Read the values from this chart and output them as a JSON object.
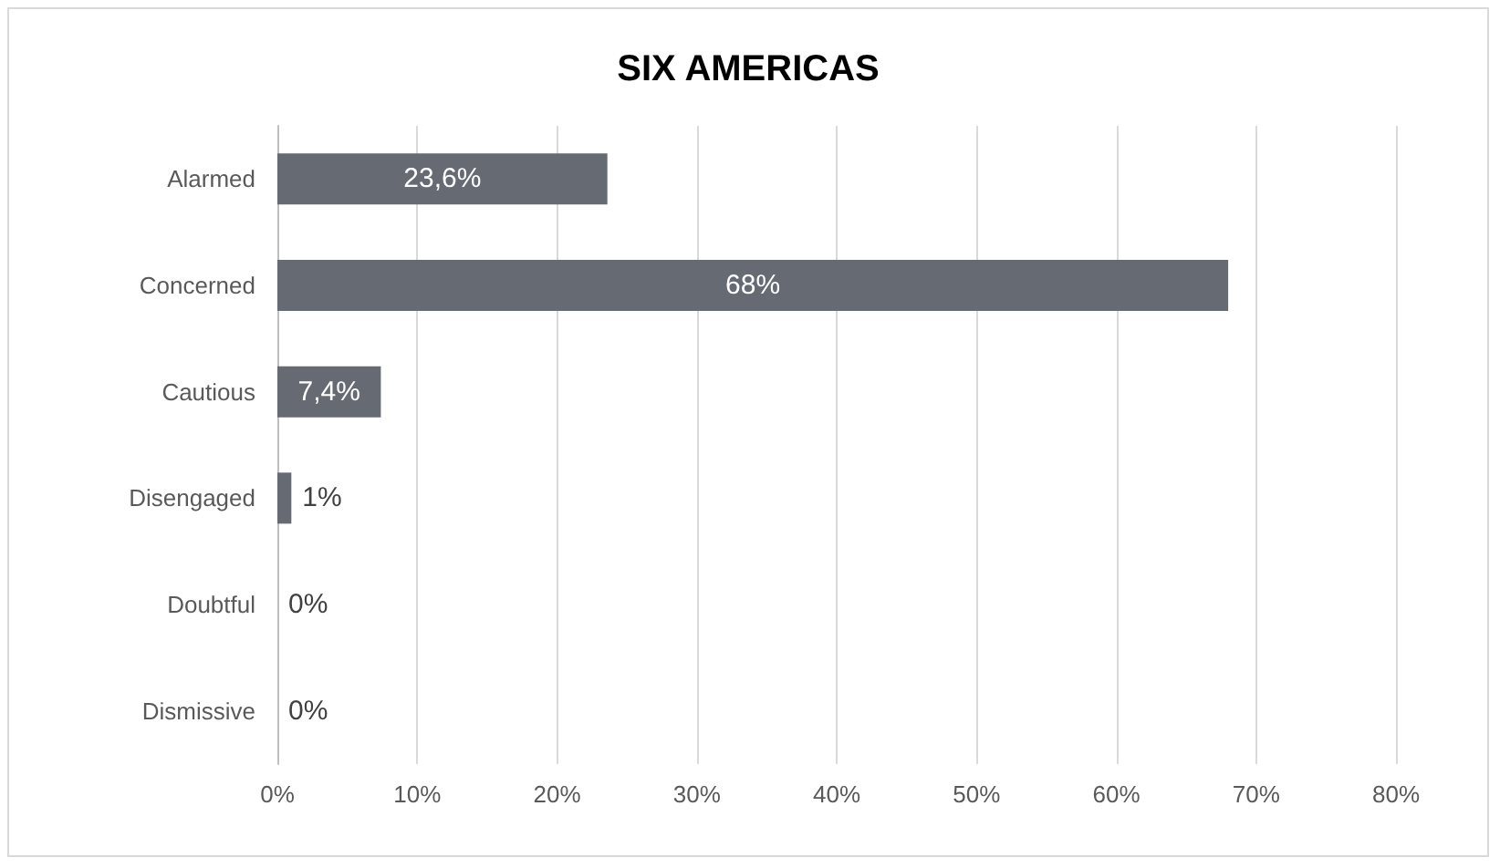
{
  "chart_data": {
    "type": "bar",
    "title": "SIX AMERICAS",
    "orientation": "horizontal",
    "categories": [
      "Alarmed",
      "Concerned",
      "Cautious",
      "Disengaged",
      "Doubtful",
      "Dismissive"
    ],
    "values": [
      23.6,
      68,
      7.4,
      1,
      0,
      0
    ],
    "value_labels": [
      "23,6%",
      "68%",
      "7,4%",
      "1%",
      "0%",
      "0%"
    ],
    "color": "#666a73",
    "xlim": [
      0,
      80
    ],
    "xticks": [
      {
        "value": 0,
        "label": "0%"
      },
      {
        "value": 10,
        "label": "10%"
      },
      {
        "value": 20,
        "label": "20%"
      },
      {
        "value": 30,
        "label": "30%"
      },
      {
        "value": 40,
        "label": "40%"
      },
      {
        "value": 50,
        "label": "50%"
      },
      {
        "value": 60,
        "label": "60%"
      },
      {
        "value": 70,
        "label": "70%"
      },
      {
        "value": 80,
        "label": "80%"
      }
    ],
    "grid": "x"
  }
}
